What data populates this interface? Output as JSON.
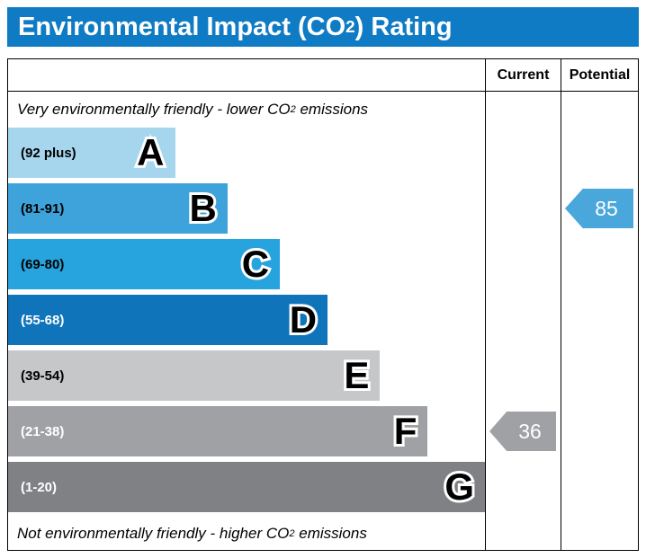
{
  "title": {
    "pre": "Environmental Impact (CO",
    "sub": "2",
    "post": ") Rating"
  },
  "columns": {
    "current": "Current",
    "potential": "Potential"
  },
  "notes": {
    "top": {
      "pre": "Very environmentally friendly - lower CO",
      "sub": "2",
      "post": " emissions"
    },
    "bottom": {
      "pre": "Not environmentally friendly - higher CO",
      "sub": "2",
      "post": " emissions"
    }
  },
  "colors": {
    "title_bg": "#0e7bc4",
    "title_fg": "#ffffff",
    "border": "#000000"
  },
  "chart_data": {
    "type": "bar",
    "title": "Environmental Impact (CO2) Rating",
    "bands": [
      {
        "letter": "A",
        "range": "(92 plus)",
        "color": "#a6d6ed",
        "text_color": "#000000",
        "width_pct": 35
      },
      {
        "letter": "B",
        "range": "(81-91)",
        "color": "#3ea3da",
        "text_color": "#000000",
        "width_pct": 46
      },
      {
        "letter": "C",
        "range": "(69-80)",
        "color": "#27a3de",
        "text_color": "#000000",
        "width_pct": 57
      },
      {
        "letter": "D",
        "range": "(55-68)",
        "color": "#1074bb",
        "text_color": "#ffffff",
        "width_pct": 67
      },
      {
        "letter": "E",
        "range": "(39-54)",
        "color": "#c6c7c9",
        "text_color": "#000000",
        "width_pct": 78
      },
      {
        "letter": "F",
        "range": "(21-38)",
        "color": "#9fa1a4",
        "text_color": "#ffffff",
        "width_pct": 88
      },
      {
        "letter": "G",
        "range": "(1-20)",
        "color": "#7f8184",
        "text_color": "#ffffff",
        "width_pct": 100
      }
    ],
    "current": {
      "value": 36,
      "band": "F",
      "band_index": 5,
      "color": "#9fa1a4"
    },
    "potential": {
      "value": 85,
      "band": "B",
      "band_index": 1,
      "color": "#4aa7dc"
    }
  }
}
